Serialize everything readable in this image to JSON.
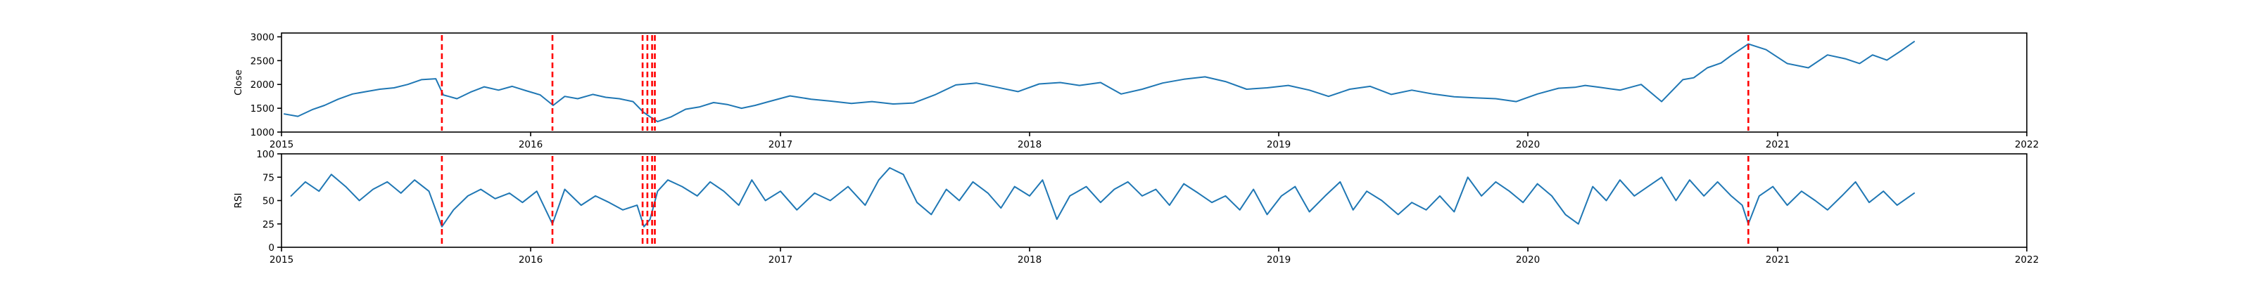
{
  "chart_data": [
    {
      "type": "line",
      "title": "",
      "xlabel": "",
      "ylabel": "Close",
      "x_ticks": [
        "2015",
        "2016",
        "2017",
        "2018",
        "2019",
        "2020",
        "2021",
        "2022"
      ],
      "y_ticks": [
        "1000",
        "1500",
        "2000",
        "2500",
        "3000"
      ],
      "xlim": [
        "2015-01-01",
        "2022-01-01"
      ],
      "ylim": [
        1000,
        3080
      ],
      "grid": false,
      "series_color": "#1f77b4",
      "event_line_color": "#ff0000",
      "event_dates": [
        "2015-08-24",
        "2016-02-02",
        "2016-06-13",
        "2016-06-20",
        "2016-06-27",
        "2016-07-01",
        "2020-11-19"
      ],
      "series": [
        {
          "x": [
            "2015-01-05",
            "2015-01-25",
            "2015-02-15",
            "2015-03-05",
            "2015-03-25",
            "2015-04-15",
            "2015-05-05",
            "2015-05-25",
            "2015-06-15",
            "2015-07-05",
            "2015-07-25",
            "2015-08-15",
            "2015-08-26",
            "2015-09-15",
            "2015-10-05",
            "2015-10-25",
            "2015-11-15",
            "2015-12-05",
            "2015-12-25",
            "2016-01-15",
            "2016-02-03",
            "2016-02-20",
            "2016-03-10",
            "2016-04-01",
            "2016-04-20",
            "2016-05-10",
            "2016-05-30",
            "2016-06-14",
            "2016-06-24",
            "2016-07-05",
            "2016-07-25",
            "2016-08-15",
            "2016-09-05",
            "2016-09-25",
            "2016-10-15",
            "2016-11-05",
            "2016-11-25",
            "2016-12-15",
            "2017-01-15",
            "2017-02-15",
            "2017-03-15",
            "2017-04-15",
            "2017-05-15",
            "2017-06-15",
            "2017-07-15",
            "2017-08-15",
            "2017-09-15",
            "2017-10-15",
            "2017-11-15",
            "2017-12-15",
            "2018-01-15",
            "2018-02-15",
            "2018-03-15",
            "2018-04-15",
            "2018-05-15",
            "2018-06-15",
            "2018-07-15",
            "2018-08-15",
            "2018-09-15",
            "2018-10-15",
            "2018-11-15",
            "2018-12-15",
            "2019-01-15",
            "2019-02-15",
            "2019-03-15",
            "2019-04-15",
            "2019-05-15",
            "2019-06-15",
            "2019-07-15",
            "2019-08-15",
            "2019-09-15",
            "2019-10-15",
            "2019-11-15",
            "2019-12-15",
            "2020-01-15",
            "2020-02-15",
            "2020-03-10",
            "2020-03-25",
            "2020-04-15",
            "2020-05-15",
            "2020-06-15",
            "2020-07-15",
            "2020-08-15",
            "2020-08-31",
            "2020-09-20",
            "2020-10-10",
            "2020-10-25",
            "2020-11-19",
            "2020-12-15",
            "2021-01-15",
            "2021-02-15",
            "2021-03-15",
            "2021-04-10",
            "2021-05-01",
            "2021-05-20",
            "2021-06-10",
            "2021-06-30",
            "2021-07-20"
          ],
          "values": [
            1380,
            1330,
            1470,
            1560,
            1690,
            1800,
            1850,
            1900,
            1930,
            2000,
            2100,
            2120,
            1780,
            1700,
            1840,
            1950,
            1880,
            1960,
            1870,
            1780,
            1560,
            1750,
            1700,
            1790,
            1730,
            1700,
            1640,
            1420,
            1320,
            1220,
            1320,
            1480,
            1530,
            1620,
            1580,
            1500,
            1560,
            1640,
            1760,
            1690,
            1650,
            1600,
            1640,
            1590,
            1610,
            1780,
            1990,
            2030,
            1940,
            1850,
            2010,
            2040,
            1980,
            2040,
            1800,
            1900,
            2030,
            2110,
            2160,
            2060,
            1900,
            1930,
            1980,
            1880,
            1750,
            1900,
            1960,
            1790,
            1880,
            1800,
            1740,
            1720,
            1700,
            1640,
            1800,
            1920,
            1940,
            1980,
            1940,
            1880,
            2000,
            1640,
            2100,
            2140,
            2350,
            2450,
            2610,
            2850,
            2730,
            2440,
            2350,
            2620,
            2540,
            2440,
            2620,
            2510,
            2700,
            2900
          ]
        }
      ]
    },
    {
      "type": "line",
      "title": "",
      "xlabel": "",
      "ylabel": "RSI",
      "x_ticks": [
        "2015",
        "2016",
        "2017",
        "2018",
        "2019",
        "2020",
        "2021",
        "2022"
      ],
      "y_ticks": [
        "0",
        "25",
        "50",
        "75",
        "100"
      ],
      "xlim": [
        "2015-01-01",
        "2022-01-01"
      ],
      "ylim": [
        0,
        100
      ],
      "grid": false,
      "series_color": "#1f77b4",
      "event_line_color": "#ff0000",
      "event_dates": [
        "2015-08-24",
        "2016-02-02",
        "2016-06-13",
        "2016-06-20",
        "2016-06-27",
        "2016-07-01",
        "2020-11-19"
      ],
      "series": [
        {
          "x": [
            "2015-01-15",
            "2015-02-05",
            "2015-02-25",
            "2015-03-15",
            "2015-04-05",
            "2015-04-25",
            "2015-05-15",
            "2015-06-05",
            "2015-06-25",
            "2015-07-15",
            "2015-08-05",
            "2015-08-24",
            "2015-09-10",
            "2015-10-01",
            "2015-10-20",
            "2015-11-10",
            "2015-12-01",
            "2015-12-20",
            "2016-01-10",
            "2016-02-02",
            "2016-02-20",
            "2016-03-15",
            "2016-04-05",
            "2016-04-25",
            "2016-05-15",
            "2016-06-05",
            "2016-06-15",
            "2016-06-24",
            "2016-07-05",
            "2016-07-20",
            "2016-08-10",
            "2016-09-01",
            "2016-09-20",
            "2016-10-10",
            "2016-11-01",
            "2016-11-20",
            "2016-12-10",
            "2017-01-01",
            "2017-01-25",
            "2017-02-20",
            "2017-03-15",
            "2017-04-10",
            "2017-05-05",
            "2017-05-25",
            "2017-06-10",
            "2017-06-30",
            "2017-07-20",
            "2017-08-10",
            "2017-09-01",
            "2017-09-20",
            "2017-10-10",
            "2017-11-01",
            "2017-11-20",
            "2017-12-10",
            "2018-01-01",
            "2018-01-20",
            "2018-02-10",
            "2018-03-01",
            "2018-03-25",
            "2018-04-15",
            "2018-05-05",
            "2018-05-25",
            "2018-06-15",
            "2018-07-05",
            "2018-07-25",
            "2018-08-15",
            "2018-09-05",
            "2018-09-25",
            "2018-10-15",
            "2018-11-05",
            "2018-11-25",
            "2018-12-15",
            "2019-01-05",
            "2019-01-25",
            "2019-02-15",
            "2019-03-10",
            "2019-04-01",
            "2019-04-20",
            "2019-05-10",
            "2019-06-01",
            "2019-06-25",
            "2019-07-15",
            "2019-08-05",
            "2019-08-25",
            "2019-09-15",
            "2019-10-05",
            "2019-10-25",
            "2019-11-15",
            "2019-12-05",
            "2019-12-25",
            "2020-01-15",
            "2020-02-05",
            "2020-02-25",
            "2020-03-15",
            "2020-04-05",
            "2020-04-25",
            "2020-05-15",
            "2020-06-05",
            "2020-06-25",
            "2020-07-15",
            "2020-08-05",
            "2020-08-25",
            "2020-09-15",
            "2020-10-05",
            "2020-10-25",
            "2020-11-10",
            "2020-11-19",
            "2020-12-05",
            "2020-12-25",
            "2021-01-15",
            "2021-02-05",
            "2021-02-25",
            "2021-03-15",
            "2021-04-05",
            "2021-04-25",
            "2021-05-15",
            "2021-06-05",
            "2021-06-25",
            "2021-07-20"
          ],
          "values": [
            55,
            70,
            60,
            78,
            65,
            50,
            62,
            70,
            58,
            72,
            60,
            22,
            40,
            55,
            62,
            52,
            58,
            48,
            60,
            25,
            62,
            45,
            55,
            48,
            40,
            45,
            22,
            30,
            60,
            72,
            65,
            55,
            70,
            60,
            45,
            72,
            50,
            60,
            40,
            58,
            50,
            65,
            45,
            72,
            85,
            78,
            48,
            35,
            62,
            50,
            70,
            58,
            42,
            65,
            55,
            72,
            30,
            55,
            65,
            48,
            62,
            70,
            55,
            62,
            45,
            68,
            58,
            48,
            55,
            40,
            62,
            35,
            55,
            65,
            38,
            55,
            70,
            40,
            60,
            50,
            35,
            48,
            40,
            55,
            38,
            75,
            55,
            70,
            60,
            48,
            68,
            55,
            35,
            25,
            65,
            50,
            72,
            55,
            65,
            75,
            50,
            72,
            55,
            70,
            55,
            45,
            25,
            55,
            65,
            45,
            60,
            50,
            40,
            55,
            70,
            48,
            60,
            45,
            58
          ]
        }
      ]
    }
  ]
}
